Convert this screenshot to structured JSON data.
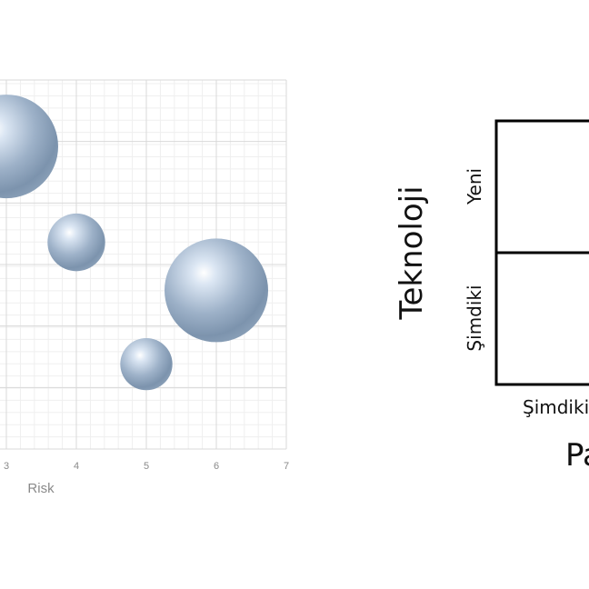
{
  "chart_data": [
    {
      "type": "scatter",
      "variant": "bubble",
      "xlabel": "Risk",
      "x_ticks": [
        3,
        4,
        5,
        6,
        7
      ],
      "xlim": [
        2.0,
        7.0
      ],
      "points": [
        {
          "x": 3.0,
          "y": 0.82,
          "size": 1.0
        },
        {
          "x": 4.0,
          "y": 0.56,
          "size": 0.55
        },
        {
          "x": 6.0,
          "y": 0.43,
          "size": 1.0
        },
        {
          "x": 5.0,
          "y": 0.23,
          "size": 0.45
        }
      ],
      "bubble_color": "#9fb4cc",
      "grid": true
    }
  ],
  "matrix": {
    "y_title": "Teknoloji",
    "row_labels": [
      "Yeni",
      "Şimdiki"
    ],
    "x_first_label": "Şimdiki",
    "x_title_fragment": "Pa"
  }
}
